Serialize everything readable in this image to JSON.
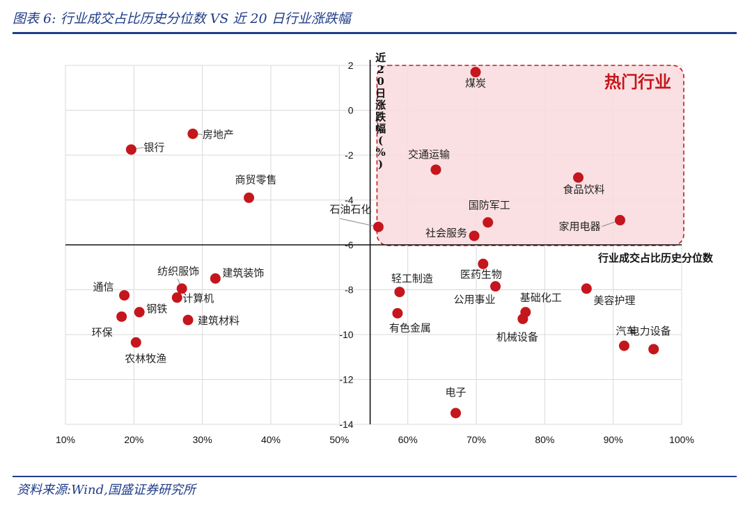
{
  "header": {
    "title": "图表 6:  行业成交占比历史分位数 VS 近 20 日行业涨跌幅"
  },
  "footer": {
    "source": "资料来源:Wind,国盛证券研究所"
  },
  "colors": {
    "accent": "#1f3c88",
    "point": "#c4161c",
    "highlight_fill": "#f9dadd",
    "highlight_border": "#c4161c"
  },
  "chart_data": {
    "type": "scatter",
    "xlabel": "行业成交占比历史分位数",
    "ylabel": "近20日涨跌幅(%)",
    "xlim": [
      10,
      100
    ],
    "ylim": [
      -14,
      2
    ],
    "x_ticks": [
      "10%",
      "20%",
      "30%",
      "40%",
      "50%",
      "60%",
      "70%",
      "80%",
      "90%",
      "100%"
    ],
    "y_ticks": [
      "2",
      "0",
      "-2",
      "-4",
      "-6",
      "-8",
      "-10",
      "-12",
      "-14"
    ],
    "grid": true,
    "cross_axes": {
      "x_at_y": -6,
      "y_at_x": 54.5
    },
    "highlight": {
      "label": "热门行业",
      "x_range": [
        55.5,
        100
      ],
      "y_range": [
        -6,
        2
      ]
    },
    "points": [
      {
        "name": "煤炭",
        "x": 69.9,
        "y": 1.7
      },
      {
        "name": "房地产",
        "x": 28.6,
        "y": -1.05
      },
      {
        "name": "银行",
        "x": 19.6,
        "y": -1.75
      },
      {
        "name": "交通运输",
        "x": 64.1,
        "y": -2.65
      },
      {
        "name": "食品饮料",
        "x": 84.9,
        "y": -3.0
      },
      {
        "name": "商贸零售",
        "x": 36.8,
        "y": -3.9
      },
      {
        "name": "国防军工",
        "x": 71.7,
        "y": -5.0
      },
      {
        "name": "家用电器",
        "x": 91.0,
        "y": -4.9
      },
      {
        "name": "石油石化",
        "x": 55.7,
        "y": -5.2
      },
      {
        "name": "社会服务",
        "x": 69.7,
        "y": -5.6
      },
      {
        "name": "医药生物",
        "x": 71.0,
        "y": -6.85
      },
      {
        "name": "建筑装饰",
        "x": 31.9,
        "y": -7.5
      },
      {
        "name": "纺织服饰",
        "x": 27.0,
        "y": -7.95
      },
      {
        "name": "公用事业",
        "x": 72.8,
        "y": -7.85
      },
      {
        "name": "美容护理",
        "x": 86.1,
        "y": -7.95
      },
      {
        "name": "轻工制造",
        "x": 58.8,
        "y": -8.1
      },
      {
        "name": "通信",
        "x": 18.6,
        "y": -8.25
      },
      {
        "name": "计算机",
        "x": 26.3,
        "y": -8.35
      },
      {
        "name": "钢铁",
        "x": 20.8,
        "y": -9.0
      },
      {
        "name": "基础化工",
        "x": 77.2,
        "y": -9.0
      },
      {
        "name": "有色金属",
        "x": 58.5,
        "y": -9.05
      },
      {
        "name": "环保",
        "x": 18.2,
        "y": -9.2
      },
      {
        "name": "机械设备",
        "x": 76.8,
        "y": -9.3
      },
      {
        "name": "建筑材料",
        "x": 27.9,
        "y": -9.35
      },
      {
        "name": "农林牧渔",
        "x": 20.3,
        "y": -10.35
      },
      {
        "name": "汽车",
        "x": 91.6,
        "y": -10.5
      },
      {
        "name": "电力设备",
        "x": 95.9,
        "y": -10.65
      },
      {
        "name": "电子",
        "x": 67.0,
        "y": -13.5
      }
    ]
  }
}
